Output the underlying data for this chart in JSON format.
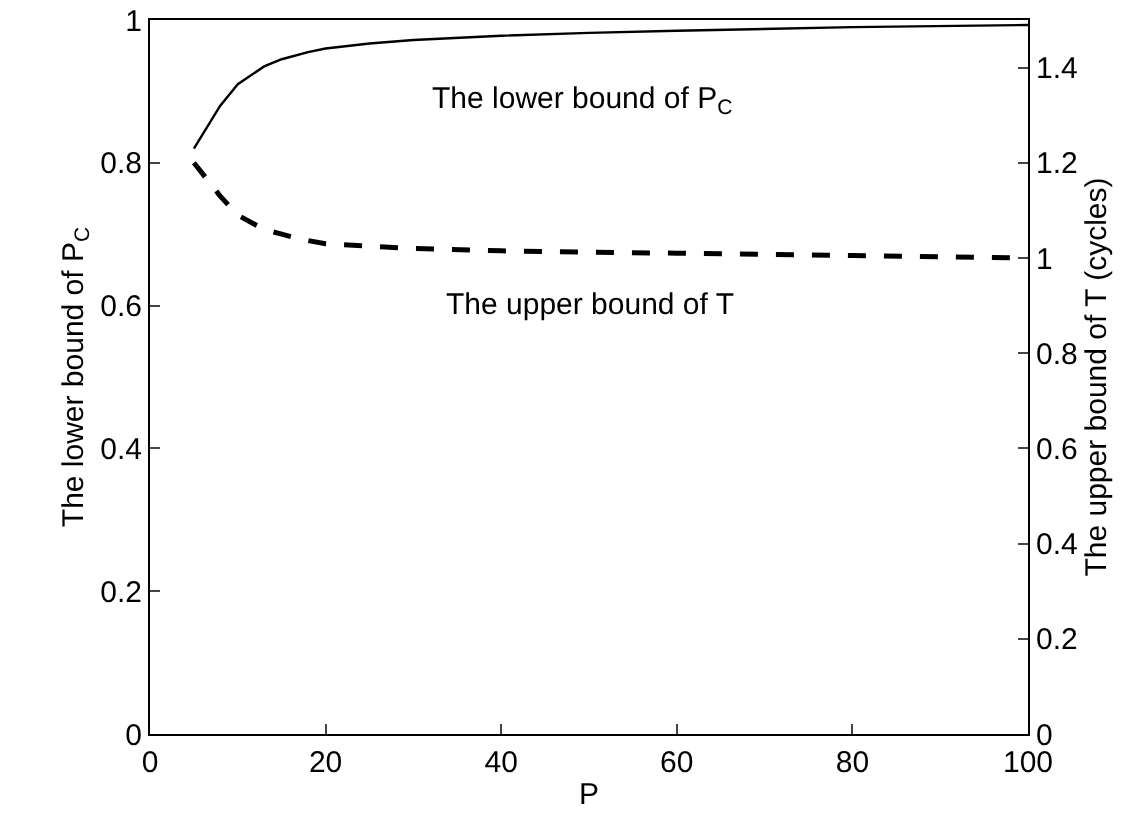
{
  "chart_data": {
    "type": "line",
    "xlabel": "P",
    "ylabel": "The lower bound of P$_{C}$",
    "y2label": "The upper bound of T (cycles)",
    "xlim": [
      0,
      100
    ],
    "xticks": [
      0,
      20,
      40,
      60,
      80,
      100
    ],
    "ylim": [
      0,
      1
    ],
    "yticks": [
      0,
      0.2,
      0.4,
      0.6,
      0.8,
      1
    ],
    "y2lim": [
      0,
      1.5
    ],
    "y2ticks": [
      0,
      0.2,
      0.4,
      0.6,
      0.8,
      1,
      1.2,
      1.4
    ],
    "grid": false,
    "series": [
      {
        "color": "#000000",
        "line_style": "solid",
        "x": [
          5,
          8,
          10,
          13,
          15,
          18,
          20,
          25,
          30,
          40,
          50,
          60,
          80,
          100
        ],
        "values": [
          0.82,
          0.88,
          0.91,
          0.935,
          0.945,
          0.955,
          0.96,
          0.967,
          0.972,
          0.978,
          0.982,
          0.985,
          0.99,
          0.993
        ]
      },
      {
        "color": "#000000",
        "line_style": "dashed",
        "axis": "y2",
        "x": [
          5,
          8,
          10,
          13,
          15,
          17,
          20,
          25,
          30,
          40,
          60,
          80,
          100
        ],
        "values": [
          1.2,
          1.13,
          1.09,
          1.06,
          1.05,
          1.04,
          1.03,
          1.025,
          1.02,
          1.015,
          1.01,
          1.005,
          1.0
        ]
      }
    ],
    "annotations": [
      "The lower bound of P$_{C}$",
      "The upper bound of T"
    ]
  }
}
